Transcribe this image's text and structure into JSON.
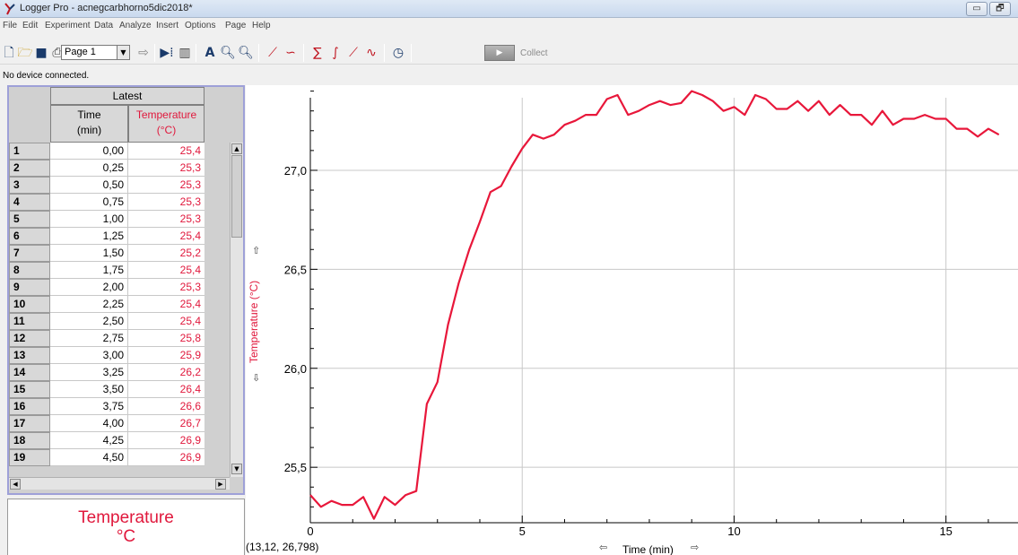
{
  "window": {
    "title": "Logger Pro - acnegcarbhorno5dic2018*",
    "minimize_glyph": "▭",
    "restore_glyph": "🗗"
  },
  "menu": [
    "File",
    "Edit",
    "Experiment",
    "Data",
    "Analyze",
    "Insert",
    "Options",
    "Page",
    "Help"
  ],
  "toolbar": {
    "page_select_value": "Page 1",
    "collect_label": "Collect",
    "icons": [
      "new-file-icon",
      "open-folder-icon",
      "save-icon",
      "print-icon",
      "prev-page-icon",
      "page-select",
      "next-page-icon",
      "table-icon",
      "data-browser-icon",
      "autoscale-icon",
      "zoom-in-icon",
      "zoom-out-icon",
      "examine-icon",
      "tangent-icon",
      "statistics-icon",
      "integral-icon",
      "linear-fit-icon",
      "curve-fit-icon",
      "timing-icon",
      "collect-button"
    ]
  },
  "status": {
    "text": "No device connected."
  },
  "table": {
    "dataset_name": "Latest",
    "columns": [
      {
        "name": "Time",
        "unit": "(min)"
      },
      {
        "name": "Temperature",
        "unit": "(°C)"
      }
    ],
    "rows": [
      {
        "n": "1",
        "time": "0,00",
        "temp": "25,4"
      },
      {
        "n": "2",
        "time": "0,25",
        "temp": "25,3"
      },
      {
        "n": "3",
        "time": "0,50",
        "temp": "25,3"
      },
      {
        "n": "4",
        "time": "0,75",
        "temp": "25,3"
      },
      {
        "n": "5",
        "time": "1,00",
        "temp": "25,3"
      },
      {
        "n": "6",
        "time": "1,25",
        "temp": "25,4"
      },
      {
        "n": "7",
        "time": "1,50",
        "temp": "25,2"
      },
      {
        "n": "8",
        "time": "1,75",
        "temp": "25,4"
      },
      {
        "n": "9",
        "time": "2,00",
        "temp": "25,3"
      },
      {
        "n": "10",
        "time": "2,25",
        "temp": "25,4"
      },
      {
        "n": "11",
        "time": "2,50",
        "temp": "25,4"
      },
      {
        "n": "12",
        "time": "2,75",
        "temp": "25,8"
      },
      {
        "n": "13",
        "time": "3,00",
        "temp": "25,9"
      },
      {
        "n": "14",
        "time": "3,25",
        "temp": "26,2"
      },
      {
        "n": "15",
        "time": "3,50",
        "temp": "26,4"
      },
      {
        "n": "16",
        "time": "3,75",
        "temp": "26,6"
      },
      {
        "n": "17",
        "time": "4,00",
        "temp": "26,7"
      },
      {
        "n": "18",
        "time": "4,25",
        "temp": "26,9"
      },
      {
        "n": "19",
        "time": "4,50",
        "temp": "26,9"
      }
    ]
  },
  "meter": {
    "label": "Temperature",
    "unit": "°C"
  },
  "graph": {
    "coord_readout": "(13,12, 26,798)",
    "x_label": "Time (min)",
    "y_label": "Temperature (°C)",
    "line_color": "#e8173a",
    "grid_color": "#c8c8c8"
  },
  "chart_data": {
    "type": "line",
    "xlabel": "Time (min)",
    "ylabel": "Temperature (°C)",
    "xlim": [
      0,
      16.7
    ],
    "ylim": [
      25.22,
      27.43
    ],
    "x_ticks": [
      0,
      5,
      10,
      15
    ],
    "x_tick_labels": [
      "0",
      "5",
      "10",
      "15"
    ],
    "y_ticks": [
      25.5,
      26.0,
      26.5,
      27.0
    ],
    "y_tick_labels": [
      "25,5",
      "26,0",
      "26,5",
      "27,0"
    ],
    "grid": true,
    "series": [
      {
        "x": [
          0,
          0.25,
          0.5,
          0.75,
          1,
          1.25,
          1.5,
          1.75,
          2,
          2.25,
          2.5,
          2.75,
          3,
          3.25,
          3.5,
          3.75,
          4,
          4.25,
          4.5,
          4.75,
          5,
          5.25,
          5.5,
          5.75,
          6,
          6.25,
          6.5,
          6.75,
          7,
          7.25,
          7.5,
          7.75,
          8,
          8.25,
          8.5,
          8.75,
          9,
          9.25,
          9.5,
          9.75,
          10,
          10.25,
          10.5,
          10.75,
          11,
          11.25,
          11.5,
          11.75,
          12,
          12.25,
          12.5,
          12.75,
          13,
          13.25,
          13.5,
          13.75,
          14,
          14.25,
          14.5,
          14.75,
          15,
          15.25,
          15.5,
          15.75,
          16,
          16.25
        ],
        "y": [
          25.36,
          25.3,
          25.33,
          25.31,
          25.31,
          25.35,
          25.24,
          25.35,
          25.31,
          25.36,
          25.38,
          25.82,
          25.93,
          26.22,
          26.43,
          26.6,
          26.74,
          26.89,
          26.92,
          27.02,
          27.11,
          27.18,
          27.16,
          27.18,
          27.23,
          27.25,
          27.28,
          27.28,
          27.36,
          27.38,
          27.28,
          27.3,
          27.33,
          27.35,
          27.33,
          27.34,
          27.4,
          27.38,
          27.35,
          27.3,
          27.32,
          27.28,
          27.38,
          27.36,
          27.31,
          27.31,
          27.35,
          27.3,
          27.35,
          27.28,
          27.33,
          27.28,
          27.28,
          27.23,
          27.3,
          27.23,
          27.26,
          27.26,
          27.28,
          27.26,
          27.26,
          27.21,
          27.21,
          27.17,
          27.21,
          27.18
        ]
      }
    ]
  }
}
